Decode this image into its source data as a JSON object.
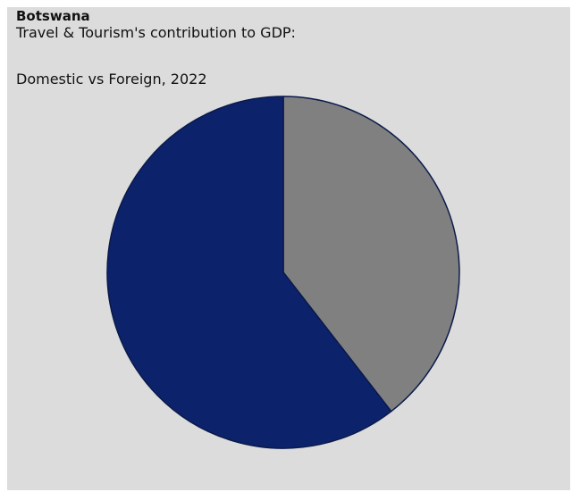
{
  "header": {
    "country": "Botswana",
    "title": "Travel & Tourism's contribution to GDP:",
    "subtitle": "Domestic vs Foreign, 2022"
  },
  "chart_data": {
    "type": "pie",
    "title": "Travel & Tourism's contribution to GDP: Domestic vs Foreign, 2022",
    "slices": [
      {
        "value": 39.5,
        "color": "#808080"
      },
      {
        "value": 60.5,
        "color": "#0c226a"
      }
    ],
    "start_angle_deg": 0,
    "direction": "clockwise",
    "stroke_color": "#0a1a4a",
    "legend": "none",
    "data_labels": false
  }
}
